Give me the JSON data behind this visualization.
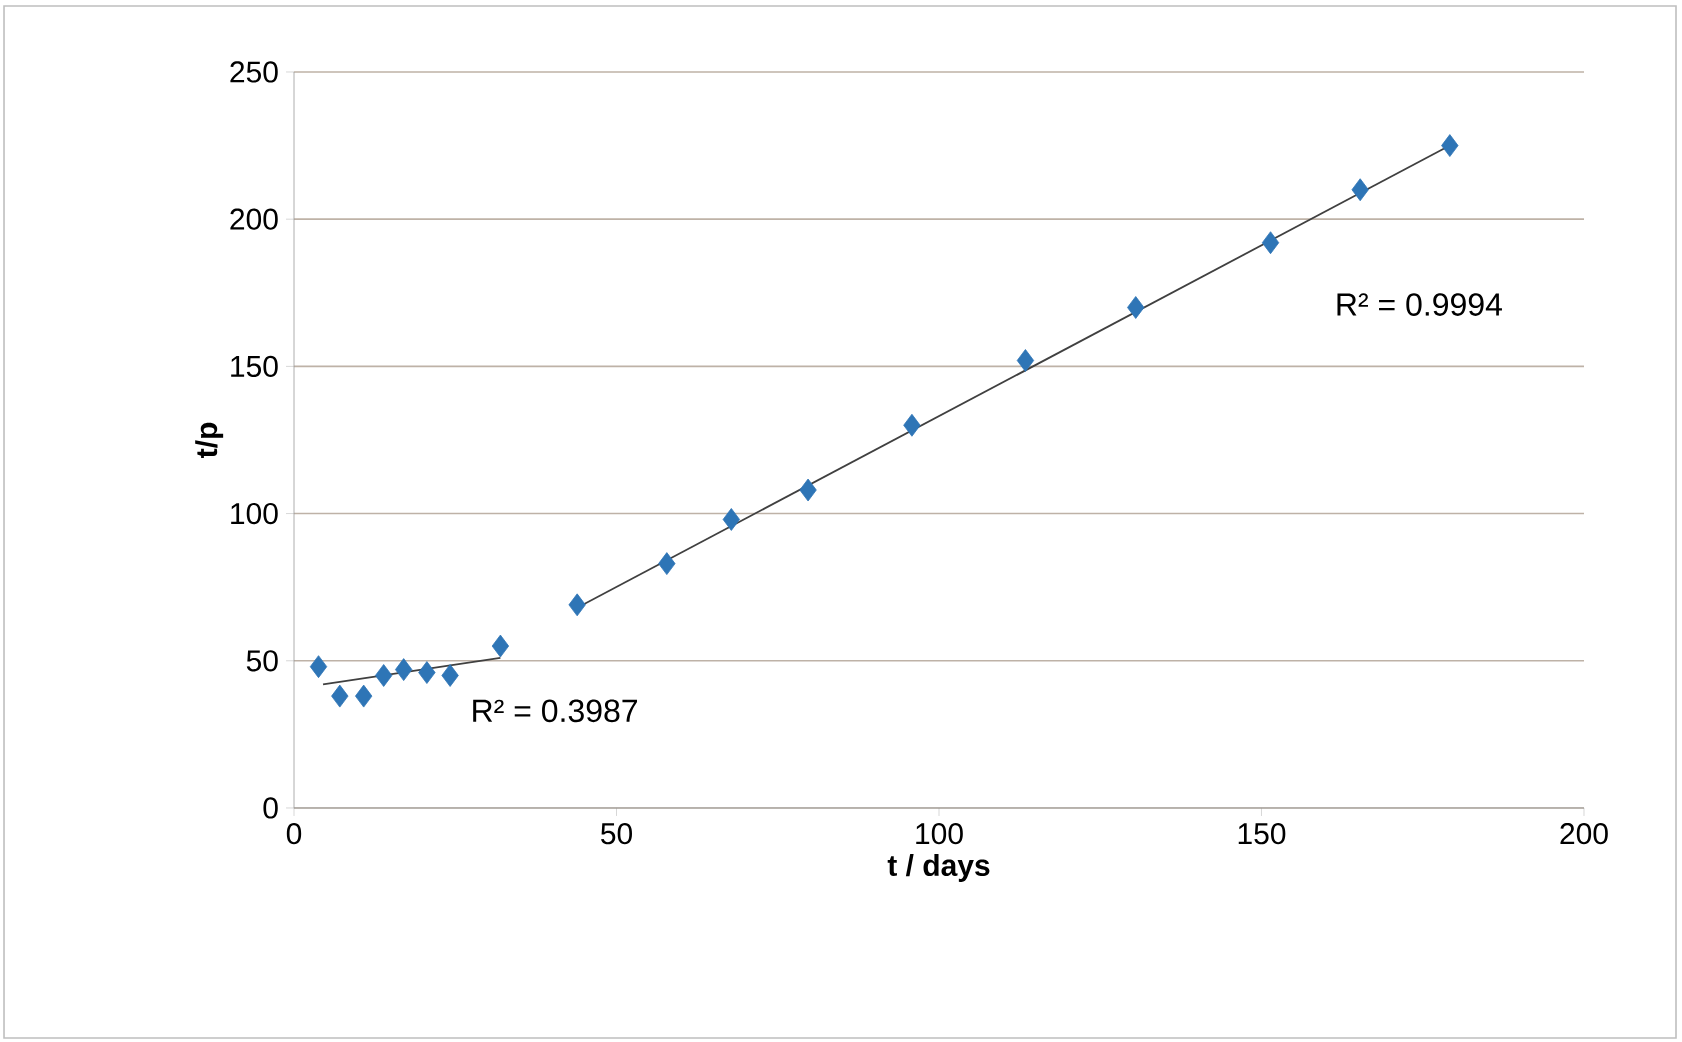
{
  "chart_data": {
    "type": "scatter",
    "xlabel": "t / days",
    "ylabel": "t/p",
    "marker": "diamond",
    "grid": "y",
    "xlim": [
      0,
      200
    ],
    "ylim": [
      0,
      250
    ],
    "xticks": [
      0,
      50,
      100,
      150,
      200
    ],
    "yticks": [
      0,
      50,
      100,
      150,
      200,
      250
    ],
    "series": [
      {
        "color": "#2e75b6",
        "x": [
          3.8,
          7.1,
          10.8,
          13.9,
          17,
          20.6,
          24.2,
          32
        ],
        "values": [
          48,
          38,
          38,
          45,
          47,
          46,
          45,
          55
        ]
      },
      {
        "color": "#2e75b6",
        "x": [
          43.9,
          57.8,
          67.8,
          79.7,
          95.8,
          113.4,
          130.5,
          151.4,
          165.3,
          179.2
        ],
        "values": [
          69,
          83,
          98,
          108,
          130,
          152,
          170,
          192,
          210,
          225
        ]
      },
      {
        "type": "line",
        "marker": "none",
        "color": "#404040",
        "x": [
          4.5,
          32
        ],
        "values": [
          42,
          51
        ]
      },
      {
        "type": "line",
        "marker": "none",
        "color": "#404040",
        "x": [
          43.9,
          179.2
        ],
        "values": [
          68,
          225
        ]
      }
    ],
    "annotations": [
      "R² = 0.3987",
      "R² = 0.9994"
    ]
  }
}
